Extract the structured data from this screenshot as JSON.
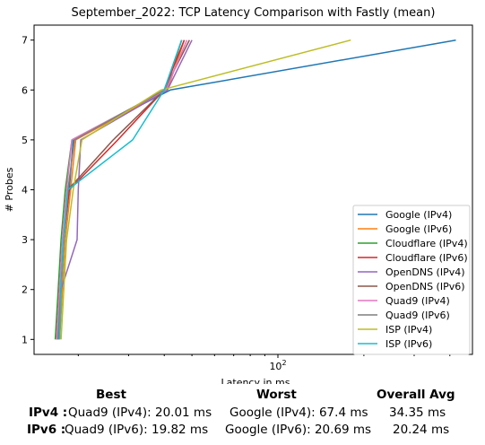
{
  "chart_data": {
    "type": "line",
    "title": "September_2022: TCP Latency Comparison with Fastly (mean)",
    "xlabel": "Latency in ms",
    "ylabel": "# Probes",
    "xscale": "log",
    "xlim": [
      14.0,
      480.0
    ],
    "ylim": [
      0.7,
      7.3
    ],
    "x_ticks": [
      {
        "value": 100,
        "label": "10^2"
      }
    ],
    "y_ticks": [
      1,
      2,
      3,
      4,
      5,
      6,
      7
    ],
    "grid": false,
    "legend_position": "lower-right",
    "series": [
      {
        "name": "Google (IPv4)",
        "color": "#1f77b4",
        "points": [
          [
            16.8,
            1
          ],
          [
            17.2,
            2
          ],
          [
            17.6,
            3
          ],
          [
            18.6,
            4
          ],
          [
            19.2,
            5
          ],
          [
            42,
            6
          ],
          [
            420,
            7
          ]
        ]
      },
      {
        "name": "Google (IPv6)",
        "color": "#ff7f0e",
        "points": [
          [
            17.2,
            1
          ],
          [
            17.6,
            2
          ],
          [
            18.0,
            3
          ],
          [
            18.8,
            4
          ],
          [
            19.6,
            5
          ],
          [
            41,
            6
          ],
          [
            47,
            7
          ]
        ]
      },
      {
        "name": "Cloudflare (IPv4)",
        "color": "#2ca02c",
        "points": [
          [
            16.6,
            1
          ],
          [
            17.0,
            2
          ],
          [
            17.4,
            3
          ],
          [
            18.0,
            4
          ],
          [
            19.0,
            5
          ],
          [
            40.5,
            6
          ],
          [
            46,
            7
          ]
        ]
      },
      {
        "name": "Cloudflare (IPv6)",
        "color": "#d62728",
        "points": [
          [
            16.8,
            1
          ],
          [
            17.2,
            2
          ],
          [
            17.8,
            3
          ],
          [
            18.6,
            4
          ],
          [
            27.5,
            5
          ],
          [
            40,
            6
          ],
          [
            47,
            7
          ]
        ]
      },
      {
        "name": "OpenDNS (IPv4)",
        "color": "#9467bd",
        "points": [
          [
            17.0,
            1
          ],
          [
            17.4,
            2
          ],
          [
            19.8,
            3
          ],
          [
            20.0,
            4
          ],
          [
            20.4,
            5
          ],
          [
            41,
            6
          ],
          [
            50,
            7
          ]
        ]
      },
      {
        "name": "OpenDNS (IPv6)",
        "color": "#8c564b",
        "points": [
          [
            17.0,
            1
          ],
          [
            17.4,
            2
          ],
          [
            17.8,
            3
          ],
          [
            18.4,
            4
          ],
          [
            26.5,
            5
          ],
          [
            40,
            6
          ],
          [
            49,
            7
          ]
        ]
      },
      {
        "name": "Quad9 (IPv4)",
        "color": "#e377c2",
        "points": [
          [
            16.8,
            1
          ],
          [
            17.2,
            2
          ],
          [
            17.6,
            3
          ],
          [
            18.2,
            4
          ],
          [
            19.0,
            5
          ],
          [
            40.5,
            6
          ],
          [
            48,
            7
          ]
        ]
      },
      {
        "name": "Quad9 (IPv6)",
        "color": "#7f7f7f",
        "points": [
          [
            17.0,
            1
          ],
          [
            17.4,
            2
          ],
          [
            17.8,
            3
          ],
          [
            18.4,
            4
          ],
          [
            19.4,
            5
          ],
          [
            40,
            6
          ],
          [
            46,
            7
          ]
        ]
      },
      {
        "name": "ISP (IPv4)",
        "color": "#bcbd22",
        "points": [
          [
            17.4,
            1
          ],
          [
            17.8,
            2
          ],
          [
            18.2,
            3
          ],
          [
            19.2,
            4
          ],
          [
            20.6,
            5
          ],
          [
            39,
            6
          ],
          [
            180,
            7
          ]
        ]
      },
      {
        "name": "ISP (IPv6)",
        "color": "#17becf",
        "points": [
          [
            17.2,
            1
          ],
          [
            17.4,
            2
          ],
          [
            17.8,
            3
          ],
          [
            18.4,
            4
          ],
          [
            31,
            5
          ],
          [
            40,
            6
          ],
          [
            46,
            7
          ]
        ]
      }
    ]
  },
  "stats": {
    "headers": {
      "best": "Best",
      "worst": "Worst",
      "avg": "Overall Avg"
    },
    "rows": [
      {
        "label": "IPv4 :",
        "best": "Quad9 (IPv4): 20.01 ms",
        "worst": "Google (IPv4): 67.4 ms",
        "avg": "34.35 ms"
      },
      {
        "label": "IPv6 :",
        "best": "Quad9 (IPv6): 19.82 ms",
        "worst": "Google (IPv6): 20.69 ms",
        "avg": "20.24 ms"
      }
    ]
  }
}
